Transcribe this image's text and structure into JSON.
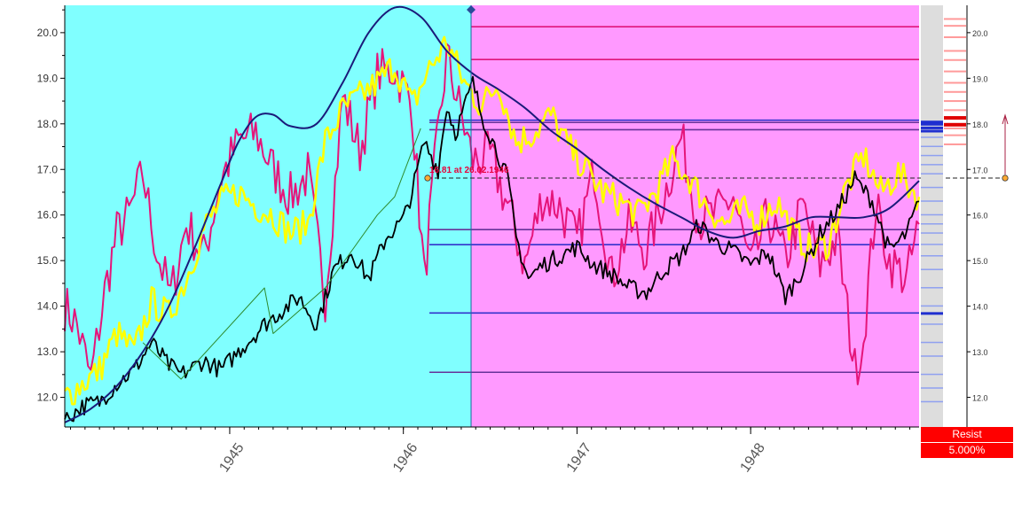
{
  "chart_data": {
    "type": "line",
    "title": "",
    "xlabel": "",
    "ylabel": "",
    "x_range": [
      1944.05,
      1948.97
    ],
    "ylim": [
      11.35,
      20.6
    ],
    "y_ticks": [
      12.0,
      13.0,
      14.0,
      15.0,
      16.0,
      17.0,
      18.0,
      19.0,
      20.0
    ],
    "y_tick_labels": [
      "12.0",
      "13.0",
      "14.0",
      "15.0",
      "16.0",
      "17.0",
      "18.0",
      "19.0",
      "20.0"
    ],
    "x_ticks": [
      1945,
      1946,
      1947,
      1948
    ],
    "x_tick_labels": [
      "1945",
      "1946",
      "1947",
      "1948"
    ],
    "background_split_x": 1946.39,
    "colors": {
      "past_background": "#80ffff",
      "future_background": "#ff99ff",
      "price": "#000000",
      "yellow_series": "#ffff00",
      "magenta_series": "#e5157a",
      "envelope": "#1a1a7a",
      "trend": "#2e8b2e",
      "level_magenta": "#e0157a",
      "level_blue": "#3333cc",
      "level_purple": "#663399",
      "crosshair": "#222222",
      "resist_badge": "#ff0000"
    },
    "series": [
      {
        "role": "price",
        "color": "#000000",
        "x": [
          1944.05,
          1944.15,
          1944.25,
          1944.35,
          1944.45,
          1944.55,
          1944.65,
          1944.72,
          1944.85,
          1944.95,
          1945.05,
          1945.15,
          1945.2,
          1945.3,
          1945.4,
          1945.5,
          1945.6,
          1945.7,
          1945.8,
          1945.9,
          1946.0,
          1946.05,
          1946.12,
          1946.2,
          1946.25,
          1946.3,
          1946.4,
          1946.45,
          1946.55,
          1946.6,
          1946.65,
          1946.72,
          1946.8,
          1946.9,
          1947.0,
          1947.1,
          1947.2,
          1947.3,
          1947.4,
          1947.5,
          1947.6,
          1947.7,
          1947.8,
          1947.9,
          1948.0,
          1948.1,
          1948.2,
          1948.3,
          1948.4,
          1948.5,
          1948.6,
          1948.7,
          1948.8,
          1948.9,
          1948.97
        ],
        "y": [
          11.5,
          11.8,
          11.9,
          12.3,
          12.6,
          13.2,
          12.7,
          12.5,
          12.8,
          12.6,
          13.0,
          13.4,
          13.6,
          13.9,
          14.2,
          13.6,
          14.8,
          15.2,
          14.6,
          15.5,
          15.9,
          16.5,
          17.6,
          17.0,
          18.4,
          17.8,
          18.9,
          18.2,
          17.3,
          16.8,
          15.5,
          14.6,
          14.9,
          15.1,
          15.3,
          14.9,
          14.7,
          14.4,
          14.3,
          14.8,
          15.1,
          15.8,
          15.4,
          15.2,
          14.9,
          15.2,
          14.2,
          14.8,
          15.6,
          16.1,
          16.8,
          16.3,
          15.2,
          15.6,
          16.3
        ]
      },
      {
        "role": "yellow",
        "color": "#ffff00",
        "x": [
          1944.05,
          1944.15,
          1944.25,
          1944.35,
          1944.45,
          1944.55,
          1944.65,
          1944.75,
          1944.85,
          1944.95,
          1945.05,
          1945.15,
          1945.25,
          1945.35,
          1945.45,
          1945.55,
          1945.65,
          1945.75,
          1945.85,
          1945.95,
          1946.05,
          1946.15,
          1946.25,
          1946.35,
          1946.45,
          1946.55,
          1946.65,
          1946.75,
          1946.85,
          1946.95,
          1947.05,
          1947.15,
          1947.25,
          1947.35,
          1947.45,
          1947.55,
          1947.65,
          1947.75,
          1947.85,
          1947.95,
          1948.05,
          1948.15,
          1948.25,
          1948.35,
          1948.45,
          1948.55,
          1948.65,
          1948.75,
          1948.85,
          1948.97
        ],
        "y": [
          12.0,
          12.3,
          12.6,
          13.4,
          13.0,
          14.1,
          13.8,
          14.6,
          15.7,
          16.3,
          16.5,
          16.2,
          16.0,
          15.6,
          15.8,
          17.6,
          18.3,
          18.6,
          18.9,
          19.3,
          18.4,
          19.2,
          19.8,
          18.9,
          18.4,
          18.9,
          17.6,
          17.8,
          18.2,
          17.5,
          17.0,
          16.5,
          16.3,
          16.0,
          16.5,
          17.2,
          16.8,
          16.2,
          15.8,
          16.1,
          15.9,
          16.3,
          15.6,
          15.2,
          15.4,
          16.6,
          17.3,
          16.5,
          16.9,
          16.4
        ]
      },
      {
        "role": "magenta",
        "color": "#e5157a",
        "x": [
          1944.05,
          1944.12,
          1944.2,
          1944.28,
          1944.35,
          1944.42,
          1944.5,
          1944.58,
          1944.66,
          1944.75,
          1944.85,
          1944.95,
          1945.05,
          1945.15,
          1945.25,
          1945.35,
          1945.45,
          1945.55,
          1945.65,
          1945.75,
          1945.85,
          1945.95,
          1946.05,
          1946.12,
          1946.18,
          1946.25,
          1946.32,
          1946.4,
          1946.5,
          1946.6,
          1946.7,
          1946.8,
          1946.9,
          1947.0,
          1947.1,
          1947.2,
          1947.3,
          1947.4,
          1947.5,
          1947.6,
          1947.7,
          1947.8,
          1947.9,
          1948.0,
          1948.1,
          1948.2,
          1948.3,
          1948.4,
          1948.5,
          1948.6,
          1948.65,
          1948.72,
          1948.8,
          1948.9,
          1948.97
        ],
        "y": [
          14.0,
          13.6,
          12.4,
          14.3,
          15.6,
          16.0,
          16.9,
          15.2,
          14.2,
          15.8,
          15.1,
          16.8,
          17.6,
          17.8,
          17.0,
          16.4,
          16.9,
          14.2,
          18.6,
          17.4,
          19.1,
          19.2,
          18.4,
          14.6,
          17.0,
          19.5,
          18.4,
          17.2,
          17.3,
          16.2,
          14.9,
          16.4,
          16.2,
          15.4,
          17.0,
          14.6,
          15.8,
          15.2,
          16.4,
          17.7,
          15.9,
          16.0,
          16.4,
          14.8,
          16.0,
          15.0,
          16.2,
          14.9,
          15.5,
          12.6,
          13.3,
          16.2,
          15.0,
          14.6,
          15.8
        ]
      },
      {
        "role": "envelope",
        "color": "#1a1a7a",
        "x": [
          1944.05,
          1944.2,
          1944.35,
          1944.5,
          1944.65,
          1944.8,
          1944.95,
          1945.05,
          1945.15,
          1945.25,
          1945.35,
          1945.5,
          1945.65,
          1945.8,
          1945.95,
          1946.1,
          1946.25,
          1946.4,
          1946.55,
          1946.7,
          1946.85,
          1947.0,
          1947.15,
          1947.3,
          1947.45,
          1947.6,
          1947.75,
          1947.9,
          1948.05,
          1948.2,
          1948.35,
          1948.5,
          1948.65,
          1948.8,
          1948.97
        ],
        "y": [
          11.45,
          11.75,
          12.25,
          13.0,
          14.0,
          15.3,
          16.7,
          17.6,
          18.15,
          18.2,
          17.95,
          18.0,
          18.9,
          20.0,
          20.55,
          20.35,
          19.6,
          19.1,
          18.75,
          18.35,
          17.85,
          17.45,
          17.0,
          16.6,
          16.25,
          15.95,
          15.65,
          15.5,
          15.65,
          15.75,
          15.95,
          15.95,
          15.95,
          16.15,
          16.75
        ]
      },
      {
        "role": "trend",
        "color": "#2e8b2e",
        "x": [
          1944.5,
          1944.72,
          1945.2,
          1945.25,
          1945.55,
          1945.85,
          1945.95,
          1946.1
        ],
        "y": [
          13.2,
          12.4,
          14.4,
          13.4,
          14.4,
          16.0,
          16.4,
          17.9
        ]
      }
    ],
    "levels": [
      {
        "y": 20.13,
        "color": "#e0157a",
        "x_start": 1946.39
      },
      {
        "y": 19.41,
        "color": "#e0157a",
        "x_start": 1946.39
      },
      {
        "y": 18.08,
        "color": "#3333cc",
        "x_start": 1946.15
      },
      {
        "y": 18.03,
        "color": "#663399",
        "x_start": 1946.15
      },
      {
        "y": 17.87,
        "color": "#663399",
        "x_start": 1946.15
      },
      {
        "y": 15.68,
        "color": "#663399",
        "x_start": 1946.15
      },
      {
        "y": 15.35,
        "color": "#3333cc",
        "x_start": 1946.15
      },
      {
        "y": 13.85,
        "color": "#3333cc",
        "x_start": 1946.15
      },
      {
        "y": 12.55,
        "color": "#663399",
        "x_start": 1946.15
      }
    ],
    "crosshair_y": 16.81,
    "annotation": "16.81 at 26.02.1946",
    "heat_bars": {
      "blue": [
        18.05,
        18.0,
        17.92,
        17.85,
        17.7,
        17.5,
        17.3,
        17.1,
        16.9,
        16.6,
        16.3,
        16.0,
        15.8,
        15.6,
        15.35,
        15.1,
        14.8,
        14.4,
        14.0,
        13.85,
        13.6,
        13.2,
        12.9,
        12.5,
        12.2,
        11.9
      ],
      "red": [
        20.3,
        20.15,
        19.9,
        19.6,
        19.4,
        19.15,
        18.9,
        18.7,
        18.5,
        18.3,
        18.15,
        18.0,
        17.9,
        17.75,
        17.55
      ]
    }
  },
  "right_axis": {
    "ticks": [
      12.0,
      13.0,
      14.0,
      15.0,
      16.0,
      17.0,
      18.0,
      19.0,
      20.0
    ],
    "labels": [
      "12.0",
      "13.0",
      "14.0",
      "15.0",
      "16.0",
      "17.0",
      "18.0",
      "19.0",
      "20.0"
    ]
  },
  "resist_badge": {
    "label": "Resist",
    "value": "5.000%"
  }
}
